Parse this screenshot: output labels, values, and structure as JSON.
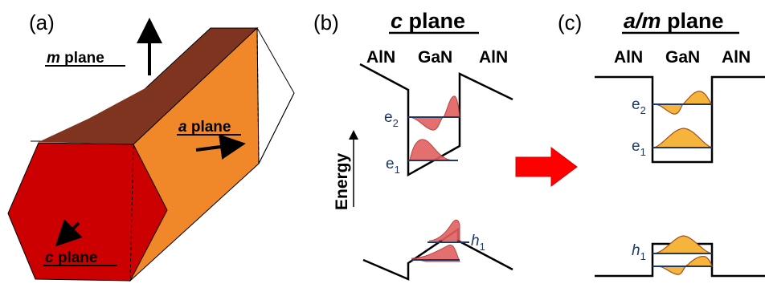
{
  "panels": {
    "a": {
      "tag": "(a)",
      "m_plane_italic": "m",
      "m_plane_text": " plane",
      "a_plane_italic": "a",
      "a_plane_text": " plane",
      "c_plane_italic": "c",
      "c_plane_text": " plane"
    },
    "b": {
      "tag": "(b)",
      "title_italic": "c",
      "title_text": " plane",
      "materials": [
        "AlN",
        "GaN",
        "AlN"
      ],
      "axis_label": "Energy",
      "levels": {
        "e2": "e",
        "e2_sub": "2",
        "e1": "e",
        "e1_sub": "1",
        "h1": "h",
        "h1_sub": "1"
      }
    },
    "c": {
      "tag": "(c)",
      "title_italic": "a/m",
      "title_text": " plane",
      "materials": [
        "AlN",
        "GaN",
        "AlN"
      ],
      "levels": {
        "e2": "e",
        "e2_sub": "2",
        "e1": "e",
        "e1_sub": "1",
        "h1": "h",
        "h1_sub": "1"
      }
    }
  },
  "colors": {
    "c_face": "#cc0000",
    "m_face": "#7f3420",
    "a_face": "#f0882a",
    "wave_red": "#e06060",
    "wave_orange": "#f5b43c",
    "level_line": "#1f3864",
    "arrow": "#ff0000"
  }
}
